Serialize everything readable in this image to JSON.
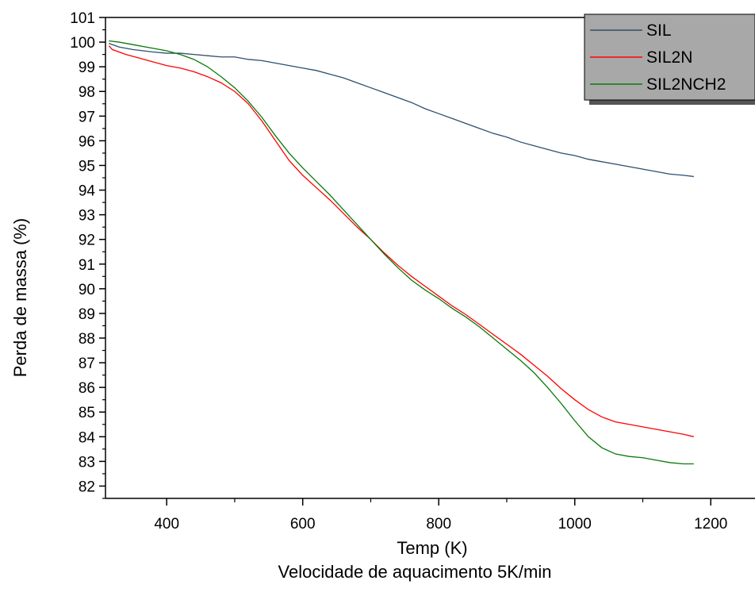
{
  "chart_data": {
    "type": "line",
    "title": "",
    "xlabel": "Temp (K)",
    "subtitle": "Velocidade de aquacimento 5K/min",
    "ylabel": "Perda de massa (%)",
    "xlim": [
      310,
      1265
    ],
    "ylim": [
      81.5,
      101
    ],
    "xticks": [
      400,
      600,
      800,
      1000,
      1200
    ],
    "yticks": [
      82,
      83,
      84,
      85,
      86,
      87,
      88,
      89,
      90,
      91,
      92,
      93,
      94,
      95,
      96,
      97,
      98,
      99,
      100,
      101
    ],
    "legend_position": "top-right",
    "series": [
      {
        "name": "SIL",
        "color": "#2e4f6e",
        "x": [
          315,
          330,
          350,
          380,
          400,
          420,
          440,
          460,
          480,
          500,
          520,
          540,
          560,
          580,
          600,
          620,
          640,
          660,
          680,
          700,
          720,
          740,
          760,
          780,
          800,
          820,
          840,
          860,
          880,
          900,
          920,
          940,
          960,
          980,
          1000,
          1020,
          1040,
          1060,
          1080,
          1100,
          1120,
          1140,
          1160,
          1175
        ],
        "y": [
          99.95,
          99.8,
          99.7,
          99.6,
          99.55,
          99.55,
          99.5,
          99.45,
          99.4,
          99.4,
          99.3,
          99.25,
          99.15,
          99.05,
          98.95,
          98.85,
          98.7,
          98.55,
          98.35,
          98.15,
          97.95,
          97.75,
          97.55,
          97.3,
          97.1,
          96.9,
          96.7,
          96.5,
          96.3,
          96.15,
          95.95,
          95.8,
          95.65,
          95.5,
          95.4,
          95.25,
          95.15,
          95.05,
          94.95,
          94.85,
          94.75,
          94.65,
          94.6,
          94.55
        ]
      },
      {
        "name": "SIL2N",
        "color": "#ff0000",
        "x": [
          315,
          320,
          340,
          360,
          380,
          400,
          420,
          440,
          460,
          480,
          500,
          520,
          540,
          560,
          580,
          600,
          620,
          640,
          660,
          680,
          700,
          720,
          740,
          760,
          780,
          800,
          820,
          840,
          860,
          880,
          900,
          920,
          940,
          960,
          980,
          1000,
          1020,
          1040,
          1060,
          1080,
          1100,
          1120,
          1140,
          1160,
          1175
        ],
        "y": [
          99.85,
          99.7,
          99.5,
          99.35,
          99.2,
          99.05,
          98.95,
          98.8,
          98.6,
          98.35,
          98.0,
          97.5,
          96.8,
          96.0,
          95.2,
          94.6,
          94.1,
          93.6,
          93.05,
          92.5,
          92.0,
          91.45,
          90.95,
          90.5,
          90.1,
          89.7,
          89.3,
          88.95,
          88.55,
          88.15,
          87.75,
          87.35,
          86.9,
          86.45,
          85.95,
          85.5,
          85.1,
          84.8,
          84.6,
          84.5,
          84.4,
          84.3,
          84.2,
          84.1,
          84.0
        ]
      },
      {
        "name": "SIL2NCH2",
        "color": "#0a7a0a",
        "x": [
          315,
          330,
          350,
          380,
          400,
          420,
          440,
          460,
          480,
          500,
          520,
          540,
          560,
          580,
          600,
          620,
          640,
          660,
          680,
          700,
          720,
          740,
          760,
          780,
          800,
          820,
          840,
          860,
          880,
          900,
          920,
          940,
          960,
          980,
          1000,
          1020,
          1040,
          1060,
          1080,
          1100,
          1120,
          1140,
          1160,
          1175
        ],
        "y": [
          100.05,
          100.0,
          99.9,
          99.75,
          99.65,
          99.5,
          99.3,
          99.0,
          98.6,
          98.15,
          97.6,
          96.95,
          96.2,
          95.5,
          94.9,
          94.35,
          93.8,
          93.2,
          92.6,
          92.0,
          91.4,
          90.85,
          90.35,
          89.95,
          89.6,
          89.2,
          88.85,
          88.45,
          88.0,
          87.55,
          87.1,
          86.6,
          86.0,
          85.35,
          84.65,
          84.0,
          83.55,
          83.3,
          83.2,
          83.15,
          83.05,
          82.95,
          82.9,
          82.9
        ]
      }
    ]
  }
}
